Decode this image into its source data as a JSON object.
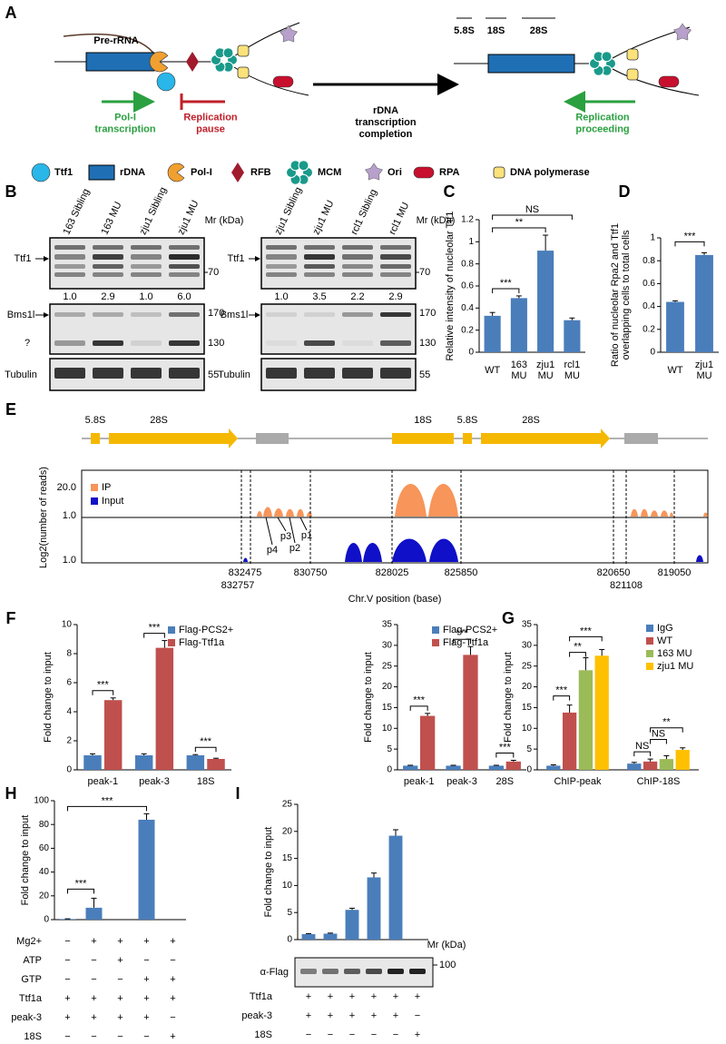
{
  "panel_labels": [
    "A",
    "B",
    "C",
    "D",
    "E",
    "F",
    "G",
    "H",
    "I"
  ],
  "diagram": {
    "pre_rrna": "Pre-rRNA",
    "pol1_transcription": "Pol-I transcription",
    "replication_pause": "Replication pause",
    "arrow_label": "rDNA transcription completion",
    "rrna_labels": [
      "5.8S",
      "18S",
      "28S"
    ],
    "replication_proceeding": "Replication proceeding",
    "legend": [
      "Ttf1",
      "rDNA",
      "Pol-I",
      "RFB",
      "MCM",
      "Ori",
      "RPA",
      "DNA polymerase"
    ]
  },
  "blots": [
    {
      "lanes": [
        "163 Sibling",
        "163 MU",
        "zju1 Sibling",
        "zju1 MU"
      ],
      "mr": "Mr (kDa)",
      "ttf1": "Ttf1",
      "ttf1_marker": "70",
      "quant": [
        "1.0",
        "2.9",
        "1.0",
        "6.0"
      ],
      "bms1l": "Bms1l",
      "unknown": "?",
      "bms_markers": [
        "170",
        "130"
      ],
      "tubulin": "Tubulin",
      "tubulin_marker": "55"
    },
    {
      "lanes": [
        "zju1 Sibling",
        "zju1 MU",
        "rcl1 Sibling",
        "rcl1 MU"
      ],
      "mr": "Mr (kDa)",
      "ttf1": "Ttf1",
      "ttf1_marker": "70",
      "quant": [
        "1.0",
        "3.5",
        "2.2",
        "2.9"
      ],
      "bms1l": "Bms1l",
      "bms_markers": [
        "170",
        "130"
      ],
      "tubulin": "Tubulin",
      "tubulin_marker": "55"
    }
  ],
  "genome": {
    "rrna_labels": [
      "5.8S",
      "28S",
      "18S",
      "5.8S",
      "28S"
    ],
    "y_label": "Log2(number of reads)",
    "legend": [
      "IP",
      "Input"
    ],
    "y_ticks": [
      "20.0",
      "1.0",
      "1.0"
    ],
    "peaks": [
      "p4",
      "p3",
      "p2",
      "p1"
    ],
    "positions": [
      "832475",
      "832757",
      "830750",
      "828025",
      "825850",
      "820650",
      "821108",
      "819050"
    ],
    "x_label": "Chr.V position (base)"
  },
  "chart_data": [
    {
      "type": "bar",
      "ylabel": "Relative intensity of nucleolar Ttf1",
      "categories": [
        "WT",
        "163 MU",
        "zju1 MU",
        "rcl1 MU"
      ],
      "values": [
        0.33,
        0.49,
        0.92,
        0.29
      ],
      "errors": [
        0.03,
        0.02,
        0.14,
        0.02
      ],
      "color": "#4a7ebb",
      "ylim": [
        0,
        1.2
      ],
      "yticks": [
        0,
        0.2,
        0.4,
        0.6,
        0.8,
        1,
        1.2
      ],
      "grid": false,
      "annotations": [
        "***",
        "**",
        "NS"
      ]
    },
    {
      "type": "bar",
      "ylabel": "Ratio of nucleolar Rpa2 and Ttf1 overlapping cells to total cells",
      "categories": [
        "WT",
        "zju1 MU"
      ],
      "values": [
        0.44,
        0.85
      ],
      "errors": [
        0.01,
        0.02
      ],
      "color": "#4a7ebb",
      "ylim": [
        0,
        1
      ],
      "yticks": [
        0,
        0.2,
        0.4,
        0.6,
        0.8,
        1
      ],
      "grid": false,
      "annotations": [
        "***"
      ]
    },
    {
      "type": "bar",
      "ylabel": "Fold change to input",
      "categories": [
        "peak-1",
        "peak-3",
        "18S"
      ],
      "series": [
        {
          "name": "Flag-PCS2+",
          "color": "#4a7ebb",
          "values": [
            1.0,
            1.0,
            1.0
          ],
          "errors": [
            0.1,
            0.1,
            0.05
          ]
        },
        {
          "name": "Flag-Ttf1a",
          "color": "#c0504d",
          "values": [
            4.8,
            8.4,
            0.75
          ],
          "errors": [
            0.15,
            0.5,
            0.05
          ]
        }
      ],
      "ylim": [
        0,
        10
      ],
      "yticks": [
        0,
        2,
        4,
        6,
        8,
        10
      ],
      "grid": false,
      "legend": "upper right",
      "annotations": [
        "***",
        "***",
        "***"
      ]
    },
    {
      "type": "bar",
      "ylabel": "Fold change to input",
      "categories": [
        "peak-1",
        "peak-3",
        "28S"
      ],
      "series": [
        {
          "name": "Flag-PCS2+",
          "color": "#4a7ebb",
          "values": [
            1,
            1,
            1
          ],
          "errors": [
            0.1,
            0.1,
            0.1
          ]
        },
        {
          "name": "Flag-Ttf1a",
          "color": "#c0504d",
          "values": [
            13,
            27.7,
            2.0
          ],
          "errors": [
            0.6,
            2.0,
            0.3
          ]
        }
      ],
      "ylim": [
        0,
        35
      ],
      "yticks": [
        0,
        5,
        10,
        15,
        20,
        25,
        30,
        35
      ],
      "grid": false,
      "legend": "upper right",
      "annotations": [
        "***",
        "***",
        "***"
      ]
    },
    {
      "type": "bar",
      "ylabel": "Fold change to input",
      "categories": [
        "ChIP-peak",
        "ChIP-18S"
      ],
      "series": [
        {
          "name": "IgG",
          "color": "#4a7ebb",
          "values": [
            1.0,
            1.5
          ],
          "errors": [
            0.2,
            0.3
          ]
        },
        {
          "name": "WT",
          "color": "#c0504d",
          "values": [
            13.8,
            2.0
          ],
          "errors": [
            1.8,
            0.6
          ]
        },
        {
          "name": "163 MU",
          "color": "#9bbb59",
          "values": [
            24,
            2.6
          ],
          "errors": [
            3,
            0.8
          ]
        },
        {
          "name": "zju1 MU",
          "color": "#ffc000",
          "values": [
            27.5,
            4.8
          ],
          "errors": [
            1.5,
            0.5
          ]
        }
      ],
      "ylim": [
        0,
        35
      ],
      "yticks": [
        0,
        5,
        10,
        15,
        20,
        25,
        30,
        35
      ],
      "grid": false,
      "legend": "upper right",
      "annotations": [
        "***",
        "**",
        "***",
        "NS",
        "NS",
        "**"
      ]
    },
    {
      "type": "bar",
      "ylabel": "Fold change to input",
      "categories": [
        null,
        null,
        null,
        null,
        null
      ],
      "values": [
        0.5,
        10,
        0,
        84,
        0
      ],
      "errors": [
        0.2,
        8,
        0,
        5,
        0
      ],
      "color": "#4a7ebb",
      "ylim": [
        0,
        100
      ],
      "yticks": [
        0,
        20,
        40,
        60,
        80,
        100
      ],
      "grid": false,
      "annotations": [
        "***",
        "***"
      ],
      "conditions": [
        {
          "label": "Mg2+",
          "marks": [
            "−",
            "+",
            "+",
            "+",
            "+"
          ]
        },
        {
          "label": "ATP",
          "marks": [
            "−",
            "−",
            "+",
            "−",
            "−"
          ]
        },
        {
          "label": "GTP",
          "marks": [
            "−",
            "−",
            "−",
            "+",
            "+"
          ]
        },
        {
          "label": "Ttf1a",
          "marks": [
            "+",
            "+",
            "+",
            "+",
            "+"
          ]
        },
        {
          "label": "peak-3",
          "marks": [
            "+",
            "+",
            "+",
            "+",
            "−"
          ]
        },
        {
          "label": "18S",
          "marks": [
            "−",
            "−",
            "−",
            "−",
            "+"
          ]
        }
      ]
    },
    {
      "type": "bar",
      "ylabel": "Fold change to input",
      "categories": [
        null,
        null,
        null,
        null,
        null,
        null
      ],
      "values": [
        1.0,
        1.1,
        5.5,
        11.5,
        19.2,
        0
      ],
      "errors": [
        0.1,
        0.1,
        0.3,
        0.8,
        1.1,
        0
      ],
      "color": "#4a7ebb",
      "ylim": [
        0,
        25
      ],
      "yticks": [
        0,
        5,
        10,
        15,
        20,
        25
      ],
      "grid": false,
      "mr": "Mr (kDa)",
      "blot": {
        "label": "α-Flag",
        "marker": "100"
      },
      "conditions": [
        {
          "label": "Ttf1a",
          "marks": [
            "+",
            "+",
            "+",
            "+",
            "+",
            "+"
          ]
        },
        {
          "label": "peak-3",
          "marks": [
            "+",
            "+",
            "+",
            "+",
            "+",
            "−"
          ]
        },
        {
          "label": "18S",
          "marks": [
            "−",
            "−",
            "−",
            "−",
            "−",
            "+"
          ]
        }
      ]
    }
  ]
}
